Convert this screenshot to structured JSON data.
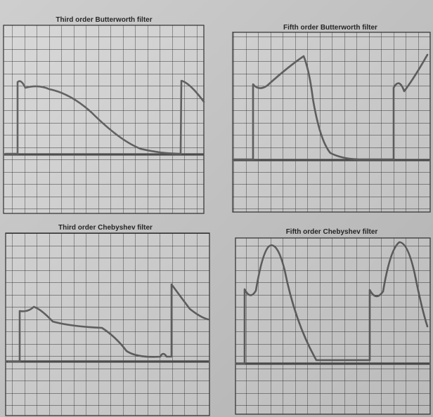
{
  "panels": [
    {
      "title": "Third order Butterworth filter"
    },
    {
      "title": "Fifth order Butterworth filter"
    },
    {
      "title": "Third order Chebyshev filter"
    },
    {
      "title": "Fifth order Chebyshev filter"
    }
  ]
}
